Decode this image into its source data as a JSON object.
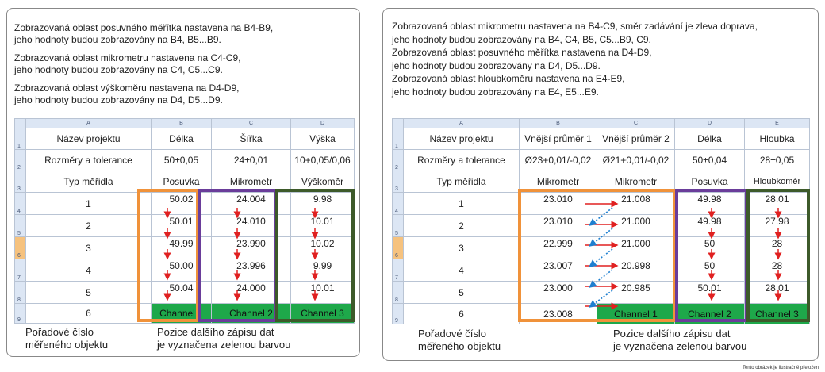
{
  "left": {
    "desc": [
      [
        "Zobrazovaná oblast posuvného měřítka nastavena na B4-B9,",
        "jeho hodnoty budou zobrazovány na B4, B5...B9."
      ],
      [
        "Zobrazovaná oblast mikrometru nastavena na C4-C9,",
        "jeho hodnoty budou zobrazovány na C4, C5...C9."
      ],
      [
        "Zobrazovaná oblast výškoměru nastavena na D4-D9,",
        "jeho hodnoty budou zobrazovány na D4, D5...D9."
      ]
    ],
    "col_letters": [
      "A",
      "B",
      "C",
      "D"
    ],
    "row_numbers": [
      "1",
      "2",
      "3",
      "4",
      "5",
      "6",
      "7",
      "8",
      "9"
    ],
    "rows_header": [
      [
        "Název projektu",
        "Délka",
        "Šířka",
        "Výška"
      ],
      [
        "Rozměry a tolerance",
        "50±0,05",
        "24±0,01",
        "10+0,05/0,06"
      ],
      [
        "Typ měřidla",
        "Posuvka",
        "Mikrometr",
        "Výškoměr"
      ]
    ],
    "objects": [
      "1",
      "2",
      "3",
      "4",
      "5",
      "6"
    ],
    "col_b": [
      "50.02",
      "50.01",
      "49.99",
      "50.00",
      "50.04"
    ],
    "col_c": [
      "24.004",
      "24.010",
      "23.990",
      "23.996",
      "24.000"
    ],
    "col_d": [
      "9.98",
      "10.01",
      "10.02",
      "9.99",
      "10.01"
    ],
    "channels": [
      "Channel 1",
      "Channel 2",
      "Channel 3"
    ],
    "cap_left": [
      "Pořadové číslo",
      "měřeného objektu"
    ],
    "cap_right": [
      "Pozice dalšího zápisu dat",
      "je vyznačena zelenou barvou"
    ]
  },
  "right": {
    "desc": [
      "Zobrazovaná oblast mikrometru nastavena na B4-C9, směr zadávání je zleva doprava,",
      "jeho hodnoty budou zobrazovány na B4, C4, B5, C5...B9, C9.",
      "Zobrazovaná oblast posuvného měřítka nastavena na D4-D9,",
      "jeho hodnoty budou zobrazovány na D4, D5...D9.",
      "Zobrazovaná oblast hloubkoměru nastavena na E4-E9,",
      "jeho hodnoty budou zobrazovány na E4, E5...E9."
    ],
    "col_letters": [
      "A",
      "B",
      "C",
      "D",
      "E"
    ],
    "row_numbers": [
      "1",
      "2",
      "3",
      "4",
      "5",
      "6",
      "7",
      "8",
      "9"
    ],
    "rows_header": [
      [
        "Název projektu",
        "Vnější průměr 1",
        "Vnější průměr 2",
        "Délka",
        "Hloubka"
      ],
      [
        "Rozměry a tolerance",
        "Ø23+0,01/-0,02",
        "Ø21+0,01/-0,02",
        "50±0,04",
        "28±0,05"
      ],
      [
        "Typ měřidla",
        "Mikrometr",
        "Mikrometr",
        "Posuvka",
        "Hloubkoměr"
      ]
    ],
    "objects": [
      "1",
      "2",
      "3",
      "4",
      "5",
      "6"
    ],
    "col_b": [
      "23.010",
      "23.010",
      "22.999",
      "23.007",
      "23.000",
      "23.008"
    ],
    "col_c": [
      "21.008",
      "21.000",
      "21.000",
      "20.998",
      "20.985"
    ],
    "col_d": [
      "49.98",
      "49.98",
      "50",
      "50",
      "50.01"
    ],
    "col_e": [
      "28.01",
      "27.98",
      "28",
      "28",
      "28.01"
    ],
    "channels": [
      "Channel 1",
      "Channel 2",
      "Channel 3"
    ],
    "cap_left": [
      "Pořadové číslo",
      "měřeného objektu"
    ],
    "cap_right": [
      "Pozice dalšího zápisu dat",
      "je vyznačena zelenou barvou"
    ]
  },
  "footnote": "Tento obrázek je ilustračně přeložen",
  "colors": {
    "orange": "#f0923a",
    "purple": "#6a3d9a",
    "dark_green": "#3d5a2a",
    "green": "#1ea84a",
    "red": "#e02020",
    "blue": "#1e7fd0"
  }
}
